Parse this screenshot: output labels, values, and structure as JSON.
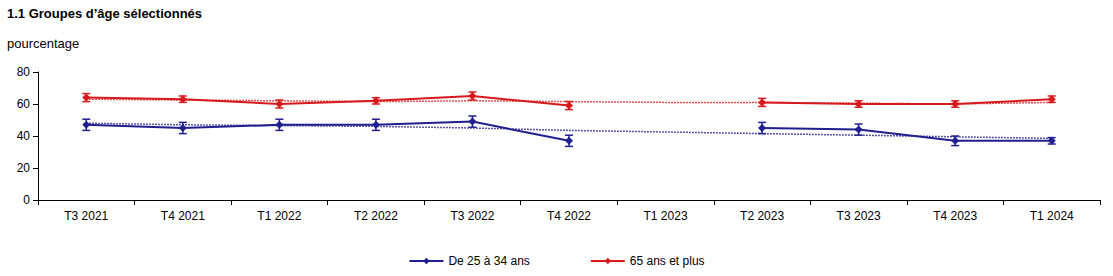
{
  "chart_data": {
    "type": "line",
    "title": "1.1 Groupes d’âge sélectionnés",
    "subtitle": "pourcentage",
    "categories": [
      "T3 2021",
      "T4 2021",
      "T1 2022",
      "T2 2022",
      "T3 2022",
      "T4 2022",
      "T1 2023",
      "T2 2023",
      "T3 2023",
      "T4 2023",
      "T1 2024"
    ],
    "series": [
      {
        "name": "De 25 à 34 ans",
        "color": "#1f1f8f",
        "marker": "diamond",
        "values": [
          47,
          45,
          47,
          47,
          49,
          37,
          null,
          45,
          44,
          37,
          37
        ],
        "errors": [
          3.5,
          3.5,
          3.5,
          3.5,
          3.5,
          3.5,
          null,
          3.5,
          3.5,
          3,
          2
        ],
        "trend": [
          48,
          47,
          46.5,
          46,
          45,
          43.5,
          42.5,
          41.5,
          40.5,
          39.5,
          38.5
        ]
      },
      {
        "name": "65 ans et plus",
        "color": "#d7191c",
        "marker": "diamond",
        "values": [
          64,
          63,
          60,
          62,
          65,
          59,
          null,
          61,
          60,
          60,
          63
        ],
        "errors": [
          2.5,
          2,
          2.5,
          2,
          2.5,
          2.5,
          null,
          2.5,
          2,
          2,
          2
        ],
        "trend": [
          63,
          62.5,
          62,
          61.5,
          62,
          61.5,
          61,
          61,
          60.5,
          60,
          61
        ]
      }
    ],
    "line_style": "solid",
    "ylim": [
      0,
      80
    ],
    "yticks": [
      0,
      20,
      40,
      60,
      80
    ],
    "grid": false,
    "legend": "bottom"
  }
}
